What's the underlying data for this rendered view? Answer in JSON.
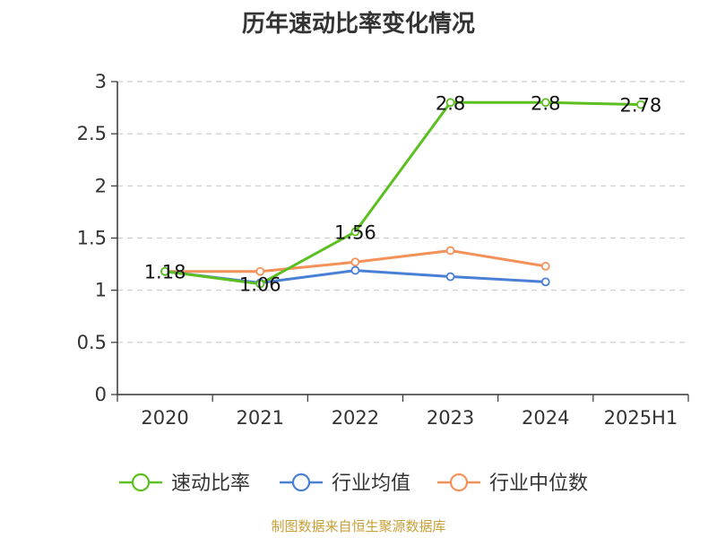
{
  "chart_data": {
    "type": "line",
    "title": "历年速动比率变化情况",
    "categories": [
      "2020",
      "2021",
      "2022",
      "2023",
      "2024",
      "2025H1"
    ],
    "ylim": [
      0,
      3
    ],
    "yticks": [
      "0",
      "0.5",
      "1",
      "1.5",
      "2",
      "2.5",
      "3"
    ],
    "grid": true,
    "legend_position": "bottom",
    "series": [
      {
        "name": "速动比率",
        "color": "#5bbf1f",
        "values": [
          1.18,
          1.06,
          1.56,
          2.8,
          2.8,
          2.78
        ],
        "labels": [
          "1.18",
          "1.06",
          "1.56",
          "2.8",
          "2.8",
          "2.78"
        ]
      },
      {
        "name": "行业均值",
        "color": "#4a7fd6",
        "values": [
          1.18,
          1.07,
          1.19,
          1.13,
          1.08,
          null
        ]
      },
      {
        "name": "行业中位数",
        "color": "#f49159",
        "values": [
          1.18,
          1.18,
          1.27,
          1.38,
          1.23,
          null
        ]
      }
    ]
  },
  "source": "制图数据来自恒生聚源数据库",
  "source_color": "#c8a03a"
}
